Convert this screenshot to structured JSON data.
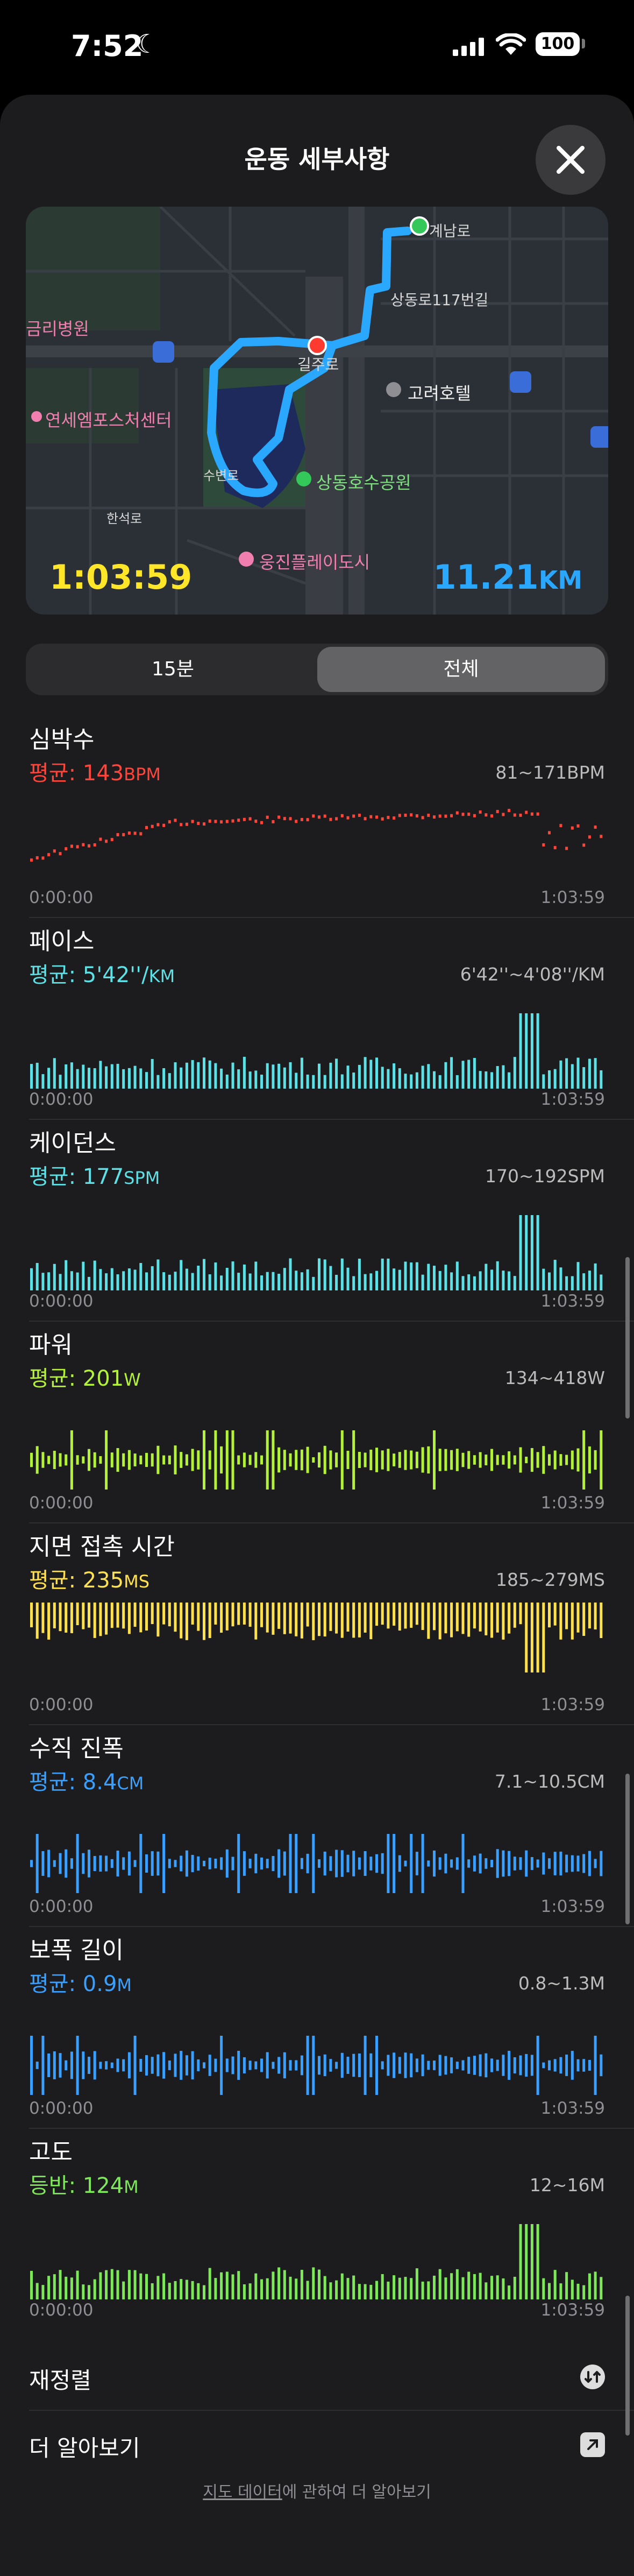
{
  "status": {
    "time": "7:52",
    "battery": "100"
  },
  "header": {
    "title": "운동 세부사항"
  },
  "map": {
    "duration": "1:03:59",
    "distance": "11.21",
    "distance_unit": "KM",
    "labels": {
      "gyenam": "계남로",
      "sangdong117": "상동로117번길",
      "hospital": "금리병원",
      "yonsei": "연세엠포스처센터",
      "gilju": "길주로",
      "goryeo": "고려호텔",
      "park": "상동호수공원",
      "woongjin": "웅진플레이도시",
      "suyeongno": "수변로",
      "hansuro": "한석로"
    }
  },
  "segment": {
    "options": [
      "15분",
      "전체"
    ],
    "selected": "전체"
  },
  "metrics": [
    {
      "title": "심박수",
      "avg_label": "평균: ",
      "avg_value": "143",
      "avg_unit": "BPM",
      "range": "81~171BPM",
      "start": "0:00:00",
      "end": "1:03:59",
      "color": "#ff453a",
      "style": "dots"
    },
    {
      "title": "페이스",
      "avg_label": "평균: ",
      "avg_value": "5'42''/",
      "avg_unit": "KM",
      "range": "6'42''~4'08''/KM",
      "start": "0:00:00",
      "end": "1:03:59",
      "color": "#5ce1e6",
      "style": "bars"
    },
    {
      "title": "케이던스",
      "avg_label": "평균: ",
      "avg_value": "177",
      "avg_unit": "SPM",
      "range": "170~192SPM",
      "start": "0:00:00",
      "end": "1:03:59",
      "color": "#5ce1e6",
      "style": "bars"
    },
    {
      "title": "파워",
      "avg_label": "평균: ",
      "avg_value": "201",
      "avg_unit": "W",
      "range": "134~418W",
      "start": "0:00:00",
      "end": "1:03:59",
      "color": "#b4f23a",
      "style": "bars-mid"
    },
    {
      "title": "지면 접촉 시간",
      "avg_label": "평균: ",
      "avg_value": "235",
      "avg_unit": "MS",
      "range": "185~279MS",
      "start": "0:00:00",
      "end": "1:03:59",
      "color": "#ffe14d",
      "style": "bars-top"
    },
    {
      "title": "수직 진폭",
      "avg_label": "평균: ",
      "avg_value": "8.4",
      "avg_unit": "CM",
      "range": "7.1~10.5CM",
      "start": "0:00:00",
      "end": "1:03:59",
      "color": "#3aa0ff",
      "style": "bars-mid"
    },
    {
      "title": "보폭 길이",
      "avg_label": "평균: ",
      "avg_value": "0.9",
      "avg_unit": "M",
      "range": "0.8~1.3M",
      "start": "0:00:00",
      "end": "1:03:59",
      "color": "#3aa0ff",
      "style": "bars-mid"
    },
    {
      "title": "고도",
      "avg_label": "등반: ",
      "avg_value": "124",
      "avg_unit": "M",
      "range": "12~16M",
      "start": "0:00:00",
      "end": "1:03:59",
      "color": "#7ee85a",
      "style": "bars"
    }
  ],
  "rows": [
    {
      "label": "재정렬",
      "icon": "reorder-icon"
    },
    {
      "label": "더 알아보기",
      "icon": "external-link-icon"
    }
  ],
  "footer": {
    "link": "지도 데이터",
    "rest": "에 관하여 더 알아보기"
  }
}
